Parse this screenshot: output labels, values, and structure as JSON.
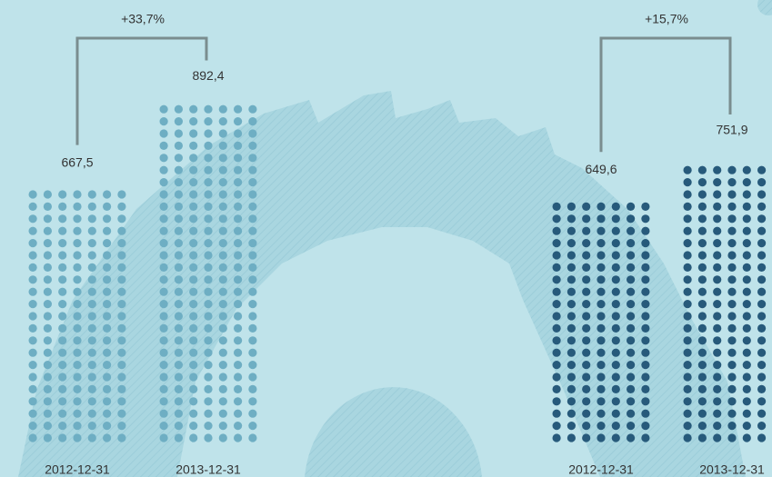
{
  "chart_data": [
    {
      "type": "bar",
      "annotation": "+33,7%",
      "categories": [
        "2012-12-31",
        "2013-12-31"
      ],
      "values": [
        667.5,
        892.4
      ],
      "value_labels": [
        "667,5",
        "892,4"
      ],
      "color": "#6eaec3"
    },
    {
      "type": "bar",
      "annotation": "+15,7%",
      "categories": [
        "2012-12-31",
        "2013-12-31"
      ],
      "values": [
        649.6,
        751.9
      ],
      "value_labels": [
        "649,6",
        "751,9"
      ],
      "color": "#275a7b"
    }
  ]
}
